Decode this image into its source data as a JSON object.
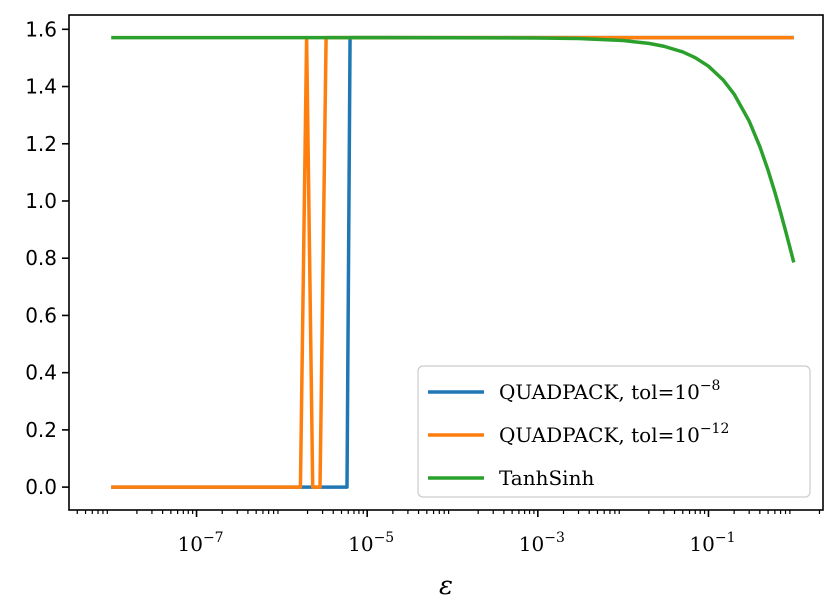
{
  "chart_data": {
    "type": "line",
    "title": "",
    "xlabel": "ε",
    "ylabel": "",
    "xscale": "log",
    "xlim": [
      3.2e-09,
      2.2
    ],
    "ylim": [
      -0.08,
      1.65
    ],
    "grid": false,
    "legend_position": "lower-right",
    "x_ticks": [
      {
        "value": 1e-07,
        "base": "10",
        "exp": "−7"
      },
      {
        "value": 1e-05,
        "base": "10",
        "exp": "−5"
      },
      {
        "value": 0.001,
        "base": "10",
        "exp": "−3"
      },
      {
        "value": 0.1,
        "base": "10",
        "exp": "−1"
      }
    ],
    "y_ticks": [
      {
        "value": 0.0,
        "label": "0.0"
      },
      {
        "value": 0.2,
        "label": "0.2"
      },
      {
        "value": 0.4,
        "label": "0.4"
      },
      {
        "value": 0.6,
        "label": "0.6"
      },
      {
        "value": 0.8,
        "label": "0.8"
      },
      {
        "value": 1.0,
        "label": "1.0"
      },
      {
        "value": 1.2,
        "label": "1.2"
      },
      {
        "value": 1.4,
        "label": "1.4"
      },
      {
        "value": 1.6,
        "label": "1.6"
      }
    ],
    "series": [
      {
        "name": "QUADPACK, tol=10^-8",
        "legend_main": "QUADPACK, tol=10",
        "legend_exp": "−8",
        "color": "#1f77b4",
        "points": [
          [
            1e-08,
            0.0
          ],
          [
            5.8e-06,
            0.0
          ],
          [
            6.3e-06,
            1.5708
          ],
          [
            1.0,
            1.5708
          ]
        ]
      },
      {
        "name": "QUADPACK, tol=10^-12",
        "legend_main": "QUADPACK, tol=10",
        "legend_exp": "−12",
        "color": "#ff7f0e",
        "points": [
          [
            1e-08,
            0.0
          ],
          [
            1.65e-06,
            0.0
          ],
          [
            1.95e-06,
            1.5708
          ],
          [
            2.3e-06,
            0.0
          ],
          [
            2.8e-06,
            0.0
          ],
          [
            3.3e-06,
            1.5708
          ],
          [
            1.0,
            1.5708
          ]
        ]
      },
      {
        "name": "TanhSinh",
        "legend_main": "TanhSinh",
        "legend_exp": "",
        "color": "#2ca02c",
        "points": [
          [
            1e-08,
            1.5708
          ],
          [
            0.0001,
            1.5707
          ],
          [
            0.001,
            1.5698
          ],
          [
            0.003,
            1.5678
          ],
          [
            0.01,
            1.5608
          ],
          [
            0.02,
            1.5508
          ],
          [
            0.03,
            1.5408
          ],
          [
            0.05,
            1.5208
          ],
          [
            0.07,
            1.5009
          ],
          [
            0.1,
            1.4711
          ],
          [
            0.15,
            1.4219
          ],
          [
            0.2,
            1.3734
          ],
          [
            0.3,
            1.2793
          ],
          [
            0.4,
            1.1903
          ],
          [
            0.5,
            1.1071
          ],
          [
            0.6,
            1.0304
          ],
          [
            0.7,
            0.9601
          ],
          [
            0.8,
            0.8961
          ],
          [
            0.9,
            0.838
          ],
          [
            1.0,
            0.7854
          ]
        ]
      }
    ]
  }
}
